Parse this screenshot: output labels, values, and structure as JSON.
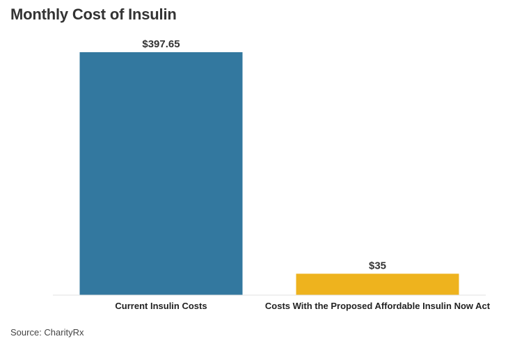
{
  "chart_data": {
    "type": "bar",
    "title": "Monthly Cost of Insulin",
    "categories": [
      "Current Insulin Costs",
      "Costs With the Proposed Affordable Insulin Now Act"
    ],
    "values": [
      397.65,
      35
    ],
    "value_labels": [
      "$397.65",
      "$35"
    ],
    "colors": [
      "#33789f",
      "#eeb31e"
    ],
    "xlabel": "",
    "ylabel": "",
    "ylim": [
      0,
      397.65
    ],
    "grid": false,
    "legend": "none"
  },
  "source": "Source: CharityRx",
  "axis_color": "#e0e0e0"
}
